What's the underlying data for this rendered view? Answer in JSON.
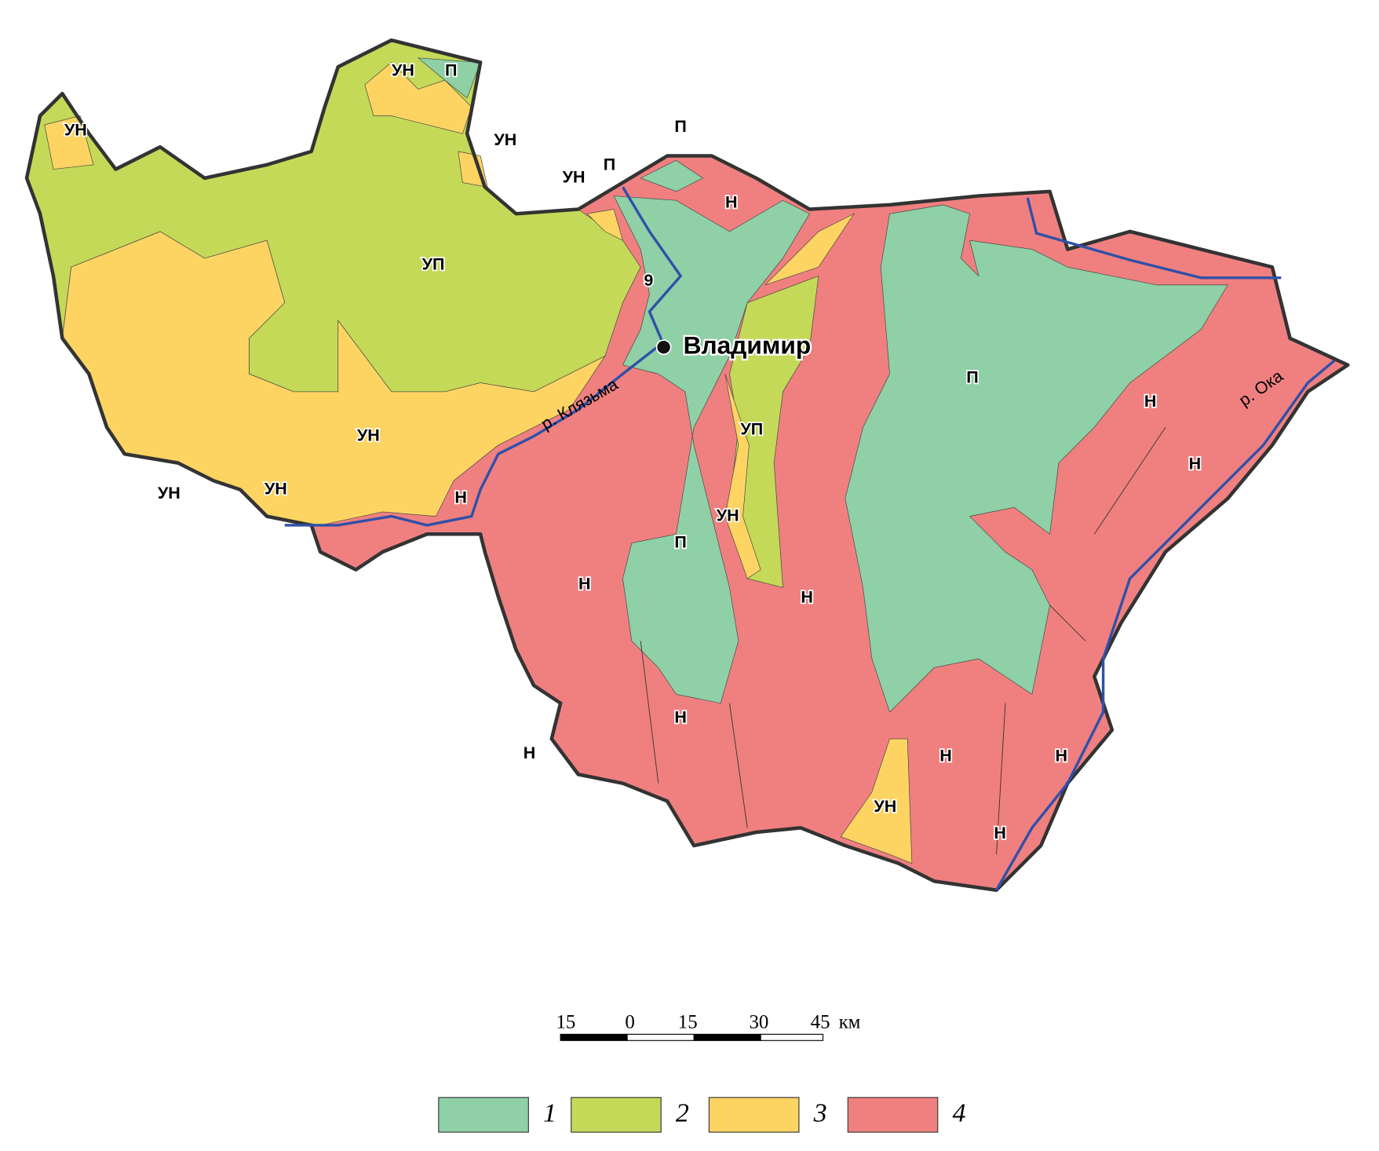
{
  "labels": [
    "УН",
    "П",
    "УН",
    "УН",
    "П",
    "П",
    "УН",
    "Н",
    "УП",
    "9",
    "УН",
    "УН",
    "УН",
    "Н",
    "П",
    "Н",
    "Н",
    "УП",
    "УН",
    "П",
    "Н",
    "Н",
    "Н",
    "Н",
    "Н",
    "Н",
    "УН",
    "Н"
  ],
  "city": "Владимир",
  "rivers": [
    "р. Клязьма",
    "р. Ока"
  ],
  "scale_bar": {
    "labels": [
      "15",
      "0",
      "15",
      "30",
      "45"
    ],
    "unit": "км"
  },
  "legend": [
    {
      "label": "1",
      "color": "#8fd0a6"
    },
    {
      "label": "2",
      "color": "#c4d957"
    },
    {
      "label": "3",
      "color": "#fdd462"
    },
    {
      "label": "4",
      "color": "#f08080"
    }
  ]
}
